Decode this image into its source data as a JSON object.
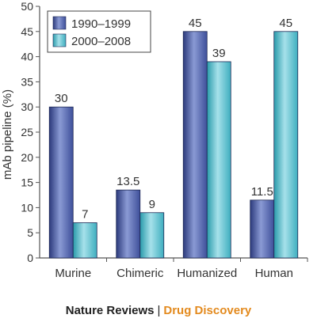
{
  "chart_data": {
    "type": "bar",
    "ylabel": "mAb pipeline (%)",
    "xlabel": "",
    "ylim": [
      0,
      50
    ],
    "yticks": [
      0,
      5,
      10,
      15,
      20,
      25,
      30,
      35,
      40,
      45,
      50
    ],
    "grid": false,
    "legend_position": "top-left",
    "categories": [
      "Murine",
      "Chimeric",
      "Humanized",
      "Human"
    ],
    "series": [
      {
        "name": "1990–1999",
        "values": [
          30,
          13.5,
          45,
          11.5
        ],
        "labels": [
          "30",
          "13.5",
          "45",
          "11.5"
        ],
        "color": "#3e4f9a",
        "color_light": "#8a9ad4"
      },
      {
        "name": "2000–2008",
        "values": [
          7,
          9,
          39,
          45
        ],
        "labels": [
          "7",
          "9",
          "39",
          "45"
        ],
        "color": "#3eaebf",
        "color_light": "#a6e1ea"
      }
    ]
  },
  "footer": {
    "publisher": "Nature Reviews",
    "separator": "|",
    "journal": "Drug Discovery"
  }
}
